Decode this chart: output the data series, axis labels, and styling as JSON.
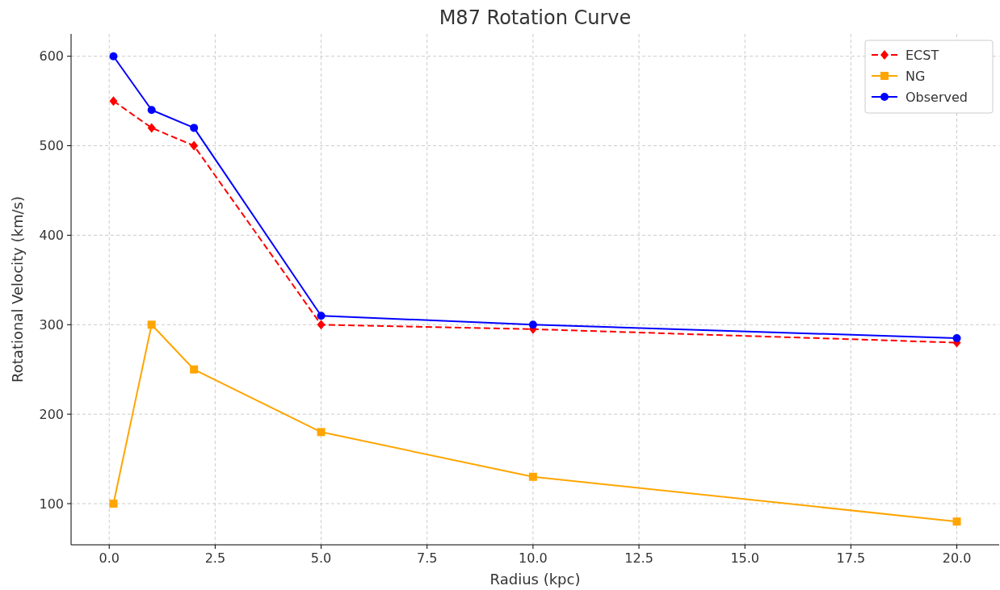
{
  "chart_data": {
    "type": "line",
    "title": "M87 Rotation Curve",
    "xlabel": "Radius (kpc)",
    "ylabel": "Rotational Velocity (km/s)",
    "x": [
      0.1,
      1,
      2,
      5,
      10,
      20
    ],
    "series": [
      {
        "name": "ECST",
        "color": "#ff0000",
        "values": [
          550,
          520,
          500,
          300,
          295,
          280
        ],
        "marker": "diamond",
        "line_style": "dashed"
      },
      {
        "name": "NG",
        "color": "#ffa500",
        "values": [
          100,
          300,
          250,
          180,
          130,
          80
        ],
        "marker": "square",
        "line_style": "solid"
      },
      {
        "name": "Observed",
        "color": "#0000ff",
        "values": [
          600,
          540,
          520,
          310,
          300,
          285
        ],
        "marker": "circle",
        "line_style": "solid"
      }
    ],
    "xlim": [
      -0.9,
      21
    ],
    "xticks": [
      {
        "value": 0,
        "label": "0.0"
      },
      {
        "value": 2.5,
        "label": "2.5"
      },
      {
        "value": 5,
        "label": "5.0"
      },
      {
        "value": 7.5,
        "label": "7.5"
      },
      {
        "value": 10,
        "label": "10.0"
      },
      {
        "value": 12.5,
        "label": "12.5"
      },
      {
        "value": 15,
        "label": "15.0"
      },
      {
        "value": 17.5,
        "label": "17.5"
      },
      {
        "value": 20,
        "label": "20.0"
      }
    ],
    "ylim": [
      54,
      625
    ],
    "yticks": [
      100,
      200,
      300,
      400,
      500,
      600
    ],
    "grid": true,
    "legend": "top right"
  }
}
